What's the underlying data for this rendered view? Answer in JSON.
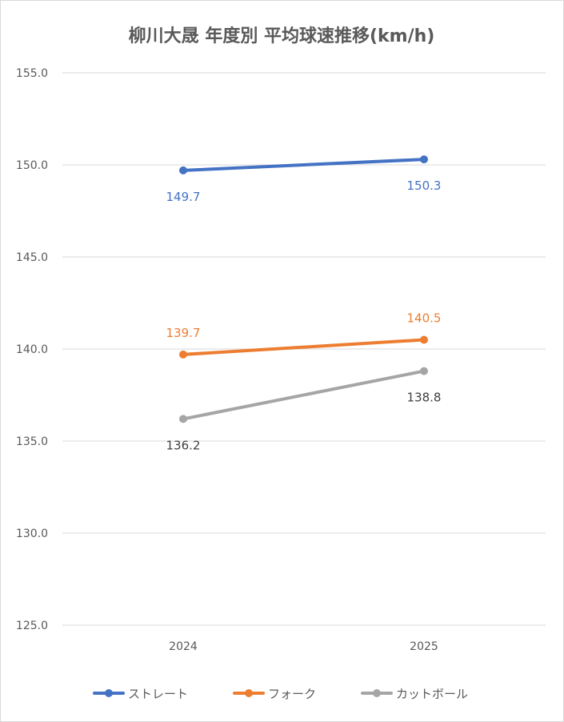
{
  "chart_data": {
    "type": "line",
    "title": "柳川大晟 年度別 平均球速推移(km/h)",
    "categories": [
      "2024",
      "2025"
    ],
    "ylim": [
      125,
      155
    ],
    "yticks": [
      "125.0",
      "130.0",
      "135.0",
      "140.0",
      "145.0",
      "150.0",
      "155.0"
    ],
    "grid": true,
    "legend_position": "bottom",
    "series": [
      {
        "name": "ストレート",
        "values": [
          149.7,
          150.3
        ],
        "labels": [
          "149.7",
          "150.3"
        ],
        "color": "#4472C4",
        "label_color": "#4472C4",
        "label_pos": [
          "below",
          "below"
        ]
      },
      {
        "name": "フォーク",
        "values": [
          139.7,
          140.5
        ],
        "labels": [
          "139.7",
          "140.5"
        ],
        "color": "#ED7D31",
        "label_color": "#ED7D31",
        "label_pos": [
          "above",
          "above"
        ]
      },
      {
        "name": "カットボール",
        "values": [
          136.2,
          138.8
        ],
        "labels": [
          "136.2",
          "138.8"
        ],
        "color": "#A5A5A5",
        "label_color": "#404040",
        "label_pos": [
          "below",
          "below"
        ]
      }
    ]
  }
}
